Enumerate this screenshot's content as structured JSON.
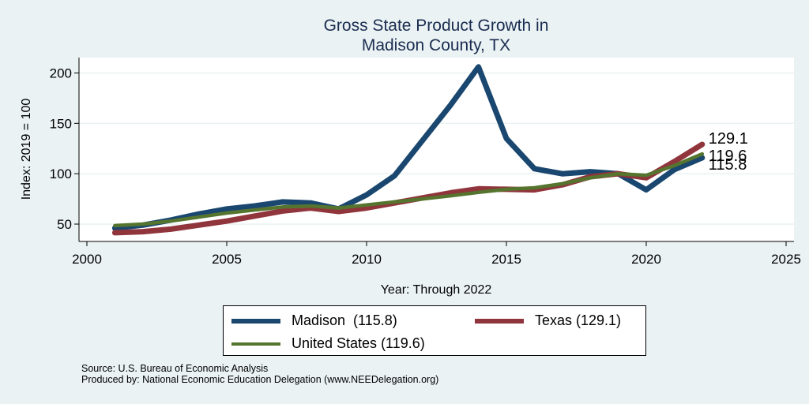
{
  "chart_data": {
    "type": "line",
    "title": [
      "Gross State Product Growth in",
      "Madison County, TX"
    ],
    "xlabel": "Year: Through 2022",
    "ylabel": "Index: 2019 = 100",
    "xlim": [
      2000,
      2025
    ],
    "ylim": [
      40,
      215
    ],
    "xticks": [
      2000,
      2005,
      2010,
      2015,
      2020,
      2025
    ],
    "yticks": [
      50,
      100,
      150,
      200
    ],
    "grid": "horizontal",
    "x": [
      2001,
      2002,
      2003,
      2004,
      2005,
      2006,
      2007,
      2008,
      2009,
      2010,
      2011,
      2012,
      2013,
      2014,
      2015,
      2016,
      2017,
      2018,
      2019,
      2020,
      2021,
      2022
    ],
    "series": [
      {
        "name": "Madison",
        "color": "#1a476f",
        "end_label": "115.8",
        "values": [
          46,
          49,
          54,
          60,
          65,
          68,
          72,
          71,
          65,
          79,
          98,
          133,
          168,
          206,
          135,
          105,
          100,
          102,
          100,
          84,
          104,
          115.8
        ]
      },
      {
        "name": "Texas",
        "color": "#90353b",
        "end_label": "129.1",
        "values": [
          41.5,
          42.5,
          45,
          49,
          53,
          58,
          63,
          66,
          62.5,
          66,
          71,
          76,
          81,
          85,
          84.5,
          84,
          89,
          97,
          100,
          96,
          112,
          129.1
        ]
      },
      {
        "name": "United States",
        "color": "#55752f",
        "end_label": "119.6",
        "values": [
          48.5,
          50,
          53,
          57,
          61,
          64,
          67,
          68,
          66,
          69,
          72,
          75,
          78,
          81.5,
          84.5,
          86,
          90,
          96,
          100,
          98.5,
          108,
          119.6
        ]
      }
    ],
    "legend": {
      "placement": "bottom",
      "entries": [
        "Madison  (115.8)",
        "Texas (129.1)",
        "United States (119.6)"
      ]
    }
  },
  "footer": {
    "source": "Source: U.S. Bureau of Economic Analysis",
    "produced_by": "Produced by: National Economic Education Delegation (www.NEEDelegation.org)"
  }
}
